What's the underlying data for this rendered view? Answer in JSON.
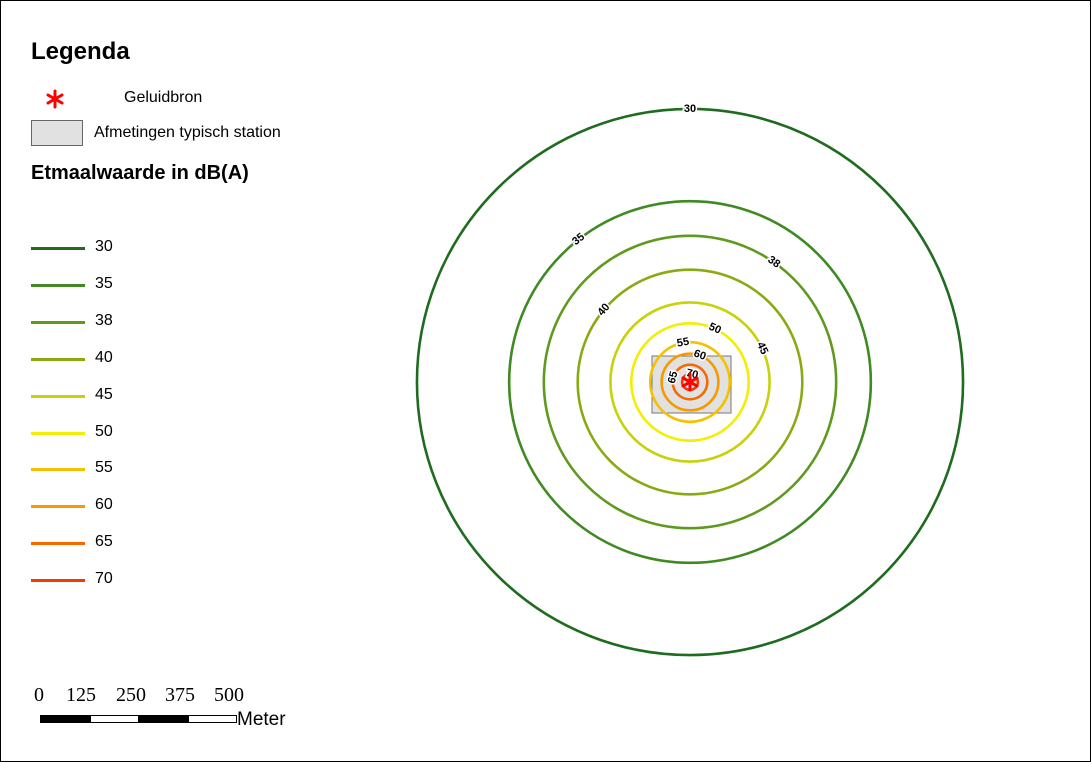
{
  "legend": {
    "title": "Legenda",
    "source_label": "Geluidbron",
    "source_color": "#ff0000",
    "station_label": "Afmetingen typisch station",
    "station_fill": "#e1e1e1",
    "subtitle": "Etmaalwaarde in dB(A)",
    "items": [
      {
        "value": "30",
        "color": "#1f6b1f"
      },
      {
        "value": "35",
        "color": "#3f8a22"
      },
      {
        "value": "38",
        "color": "#5f9a1f"
      },
      {
        "value": "40",
        "color": "#8aaa14"
      },
      {
        "value": "45",
        "color": "#c8d10a"
      },
      {
        "value": "50",
        "color": "#f4ee00"
      },
      {
        "value": "55",
        "color": "#f5c000"
      },
      {
        "value": "60",
        "color": "#f59a00"
      },
      {
        "value": "65",
        "color": "#f56a00"
      },
      {
        "value": "70",
        "color": "#f53a00"
      }
    ]
  },
  "scale": {
    "ticks": [
      "0",
      "125",
      "250",
      "375",
      "500"
    ],
    "unit": "Meter"
  },
  "contours": [
    {
      "label": "30",
      "color": "#1f6b1f",
      "radius_m": 693
    },
    {
      "label": "35",
      "color": "#3f8a22",
      "radius_m": 459
    },
    {
      "label": "38",
      "color": "#5f9a1f",
      "radius_m": 371
    },
    {
      "label": "40",
      "color": "#8aaa14",
      "radius_m": 285
    },
    {
      "label": "45",
      "color": "#c8d10a",
      "radius_m": 202
    },
    {
      "label": "50",
      "color": "#f4ee00",
      "radius_m": 149
    },
    {
      "label": "55",
      "color": "#f5c000",
      "radius_m": 101
    },
    {
      "label": "60",
      "color": "#f59a00",
      "radius_m": 72
    },
    {
      "label": "65",
      "color": "#f56a00",
      "radius_m": 44
    },
    {
      "label": "70",
      "color": "#f53a00",
      "radius_m": 20
    }
  ]
}
